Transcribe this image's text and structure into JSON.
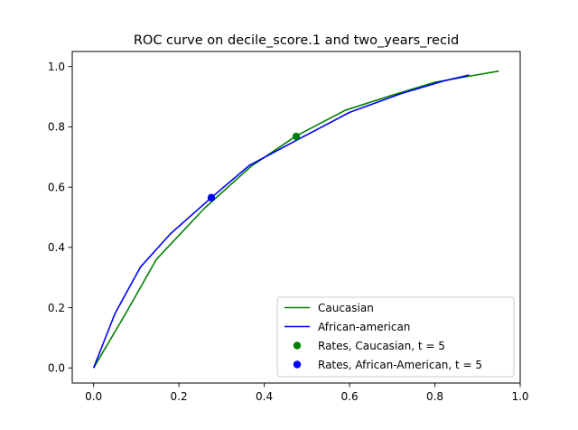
{
  "chart_data": {
    "type": "line",
    "title": "ROC curve on decile_score.1 and two_years_recid",
    "xlabel": "",
    "ylabel": "",
    "xlim": [
      -0.05,
      1.0
    ],
    "ylim": [
      -0.05,
      1.05
    ],
    "x_ticks": [
      0.0,
      0.2,
      0.4,
      0.6,
      0.8,
      1.0
    ],
    "x_tick_labels": [
      "0.0",
      "0.2",
      "0.4",
      "0.6",
      "0.8",
      "1.0"
    ],
    "y_ticks": [
      0.0,
      0.2,
      0.4,
      0.6,
      0.8,
      1.0
    ],
    "y_tick_labels": [
      "0.0",
      "0.2",
      "0.4",
      "0.6",
      "0.8",
      "1.0"
    ],
    "grid": false,
    "legend_position": "lower-right",
    "series": [
      {
        "name": "Caucasian",
        "kind": "line",
        "color": "#008000",
        "x": [
          0.0,
          0.075,
          0.147,
          0.26,
          0.37,
          0.475,
          0.59,
          0.7,
          0.8,
          0.88,
          0.95
        ],
        "y": [
          0.0,
          0.18,
          0.36,
          0.53,
          0.67,
          0.77,
          0.855,
          0.905,
          0.948,
          0.968,
          0.985
        ]
      },
      {
        "name": "African-american",
        "kind": "line",
        "color": "#0000ff",
        "x": [
          0.0,
          0.05,
          0.11,
          0.18,
          0.276,
          0.365,
          0.475,
          0.6,
          0.72,
          0.82,
          0.88
        ],
        "y": [
          0.0,
          0.18,
          0.335,
          0.445,
          0.565,
          0.672,
          0.755,
          0.848,
          0.91,
          0.952,
          0.972
        ]
      },
      {
        "name": "Rates, Caucasian, t = 5",
        "kind": "point",
        "color": "#008000",
        "x": [
          0.475
        ],
        "y": [
          0.768
        ]
      },
      {
        "name": "Rates, African-American, t = 5",
        "kind": "point",
        "color": "#0000ff",
        "x": [
          0.276
        ],
        "y": [
          0.565
        ]
      }
    ]
  }
}
